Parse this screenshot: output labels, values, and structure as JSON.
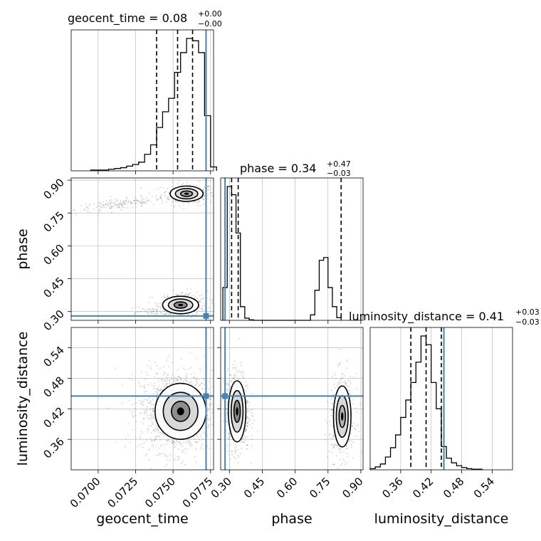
{
  "chart_data": {
    "type": "corner",
    "parameters": [
      "geocent_time",
      "phase",
      "luminosity_distance"
    ],
    "titles": [
      {
        "label": "geocent_time = 0.08",
        "sup": "+0.00",
        "sub": "−0.00"
      },
      {
        "label": "phase = 0.34",
        "sup": "+0.47",
        "sub": "−0.03"
      },
      {
        "label": "luminosity_distance = 0.41",
        "sup": "+0.03",
        "sub": "−0.03"
      }
    ],
    "axis_labels": {
      "x": [
        "geocent_time",
        "phase",
        "luminosity_distance"
      ],
      "y": [
        "phase",
        "luminosity_distance"
      ]
    },
    "ranges": {
      "geocent_time": [
        0.0682,
        0.0777
      ],
      "phase": [
        0.26,
        0.91
      ],
      "luminosity_distance": [
        0.3,
        0.58
      ]
    },
    "ticks": {
      "geocent_time": [
        "0.0700",
        "0.0725",
        "0.0750",
        "0.0775"
      ],
      "phase": [
        "0.30",
        "0.45",
        "0.60",
        "0.75",
        "0.90"
      ],
      "luminosity_distance": [
        "0.36",
        "0.42",
        "0.48",
        "0.54"
      ]
    },
    "truths": {
      "geocent_time": 0.0772,
      "phase": 0.28,
      "luminosity_distance": 0.445
    },
    "quantiles": {
      "geocent_time": [
        0.0739,
        0.0753,
        0.0763
      ],
      "phase": [
        0.31,
        0.34,
        0.81
      ],
      "luminosity_distance": [
        0.38,
        0.41,
        0.44
      ]
    },
    "histograms": {
      "geocent_time": {
        "edges_start": 0.0695,
        "bin_width": 0.0004,
        "counts": [
          1,
          1,
          1,
          2,
          3,
          4,
          6,
          8,
          11,
          21,
          33,
          55,
          75,
          92,
          125,
          150,
          168,
          165,
          150,
          70,
          5
        ]
      },
      "phase": {
        "edges_start": 0.27,
        "bin_width": 0.02,
        "counts": [
          60,
          245,
          230,
          160,
          25,
          4,
          1,
          0,
          0,
          0,
          0,
          0,
          0,
          0,
          0,
          0,
          0,
          0,
          0,
          0,
          10,
          55,
          110,
          115,
          60,
          25,
          5
        ]
      },
      "luminosity_distance": {
        "edges_start": 0.3,
        "bin_width": 0.01,
        "counts": [
          2,
          5,
          10,
          22,
          38,
          60,
          90,
          120,
          150,
          185,
          230,
          215,
          150,
          105,
          40,
          20,
          12,
          7,
          4,
          2,
          1,
          1
        ]
      }
    },
    "grid": true,
    "colors": {
      "truth": "#4682b4",
      "hist": "#000000",
      "quantile": "#000000",
      "grid": "#b0b0b0",
      "scatter": "#000000"
    }
  }
}
